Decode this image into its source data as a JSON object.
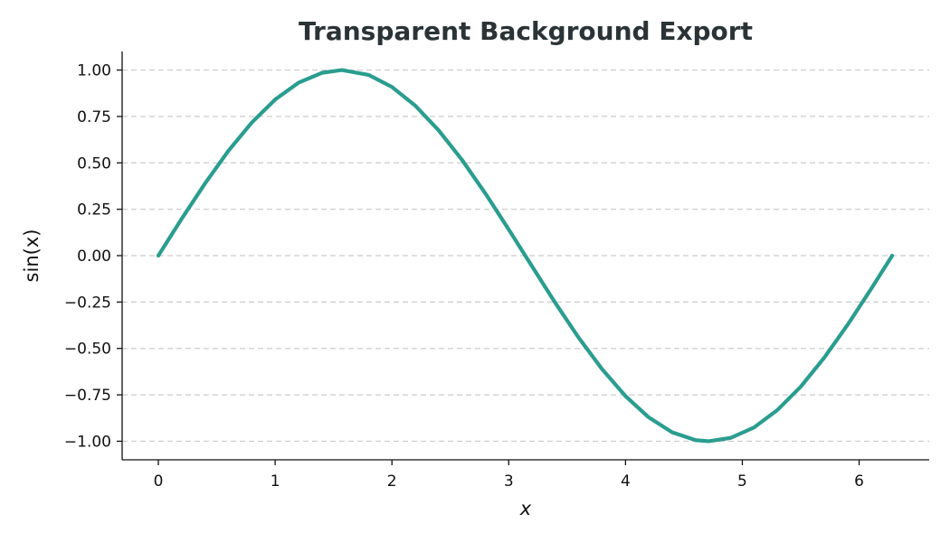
{
  "chart_data": {
    "type": "line",
    "title": "Transparent Background Export",
    "xlabel": "x",
    "ylabel": "sin(x)",
    "xlim": [
      -0.31,
      6.6
    ],
    "ylim": [
      -1.1,
      1.1
    ],
    "xticks": [
      0,
      1,
      2,
      3,
      4,
      5,
      6
    ],
    "xtick_labels": [
      "0",
      "1",
      "2",
      "3",
      "4",
      "5",
      "6"
    ],
    "yticks": [
      -1.0,
      -0.75,
      -0.5,
      -0.25,
      0.0,
      0.25,
      0.5,
      0.75,
      1.0
    ],
    "ytick_labels": [
      "−1.00",
      "−0.75",
      "−0.50",
      "−0.25",
      "0.00",
      "0.25",
      "0.50",
      "0.75",
      "1.00"
    ],
    "grid": "y-dashed",
    "series": [
      {
        "color": "#2a9d8f",
        "x": [
          0,
          0.2,
          0.4,
          0.6,
          0.8,
          1.0,
          1.2,
          1.4,
          1.5708,
          1.8,
          2.0,
          2.2,
          2.4,
          2.6,
          2.8,
          3.0,
          3.1416,
          3.4,
          3.6,
          3.8,
          4.0,
          4.2,
          4.4,
          4.6,
          4.7124,
          4.9,
          5.1,
          5.3,
          5.5,
          5.7,
          5.9,
          6.1,
          6.2832
        ],
        "y": [
          0.0,
          0.199,
          0.389,
          0.565,
          0.717,
          0.841,
          0.932,
          0.985,
          1.0,
          0.974,
          0.909,
          0.808,
          0.675,
          0.516,
          0.335,
          0.141,
          0.0,
          -0.256,
          -0.443,
          -0.612,
          -0.757,
          -0.872,
          -0.952,
          -0.994,
          -1.0,
          -0.982,
          -0.926,
          -0.832,
          -0.706,
          -0.551,
          -0.374,
          -0.182,
          0.0
        ]
      }
    ]
  }
}
